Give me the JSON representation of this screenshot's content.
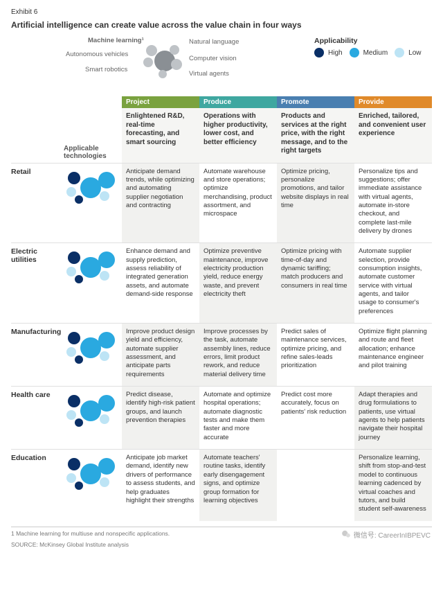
{
  "exhibit_label": "Exhibit 6",
  "title": "Artificial intelligence can create value across the value chain in four ways",
  "tech_legend": {
    "heading": "Machine learning¹",
    "items": [
      "Natural language",
      "Autonomous vehicles",
      "Computer vision",
      "Smart robotics",
      "Virtual agents"
    ],
    "center_color": "#8a8f94",
    "ring_color": "#bfc3c7"
  },
  "applicability": {
    "heading": "Applicability",
    "levels": [
      {
        "label": "High",
        "color": "#0a2f66"
      },
      {
        "label": "Medium",
        "color": "#2aa9e0"
      },
      {
        "label": "Low",
        "color": "#bde4f5"
      }
    ]
  },
  "columns": [
    {
      "key": "project",
      "tab": "Project",
      "color": "#7aa23f",
      "sub": "Enlightened R&D, real-time forecasting, and smart sourcing"
    },
    {
      "key": "produce",
      "tab": "Produce",
      "color": "#3fa7a0",
      "sub": "Operations with higher productivity, lower cost, and better efficiency"
    },
    {
      "key": "promote",
      "tab": "Promote",
      "color": "#4a7fb0",
      "sub": "Products and services at the right price, with the right message, and to the right targets"
    },
    {
      "key": "provide",
      "tab": "Provide",
      "color": "#e08a2a",
      "sub": "Enriched, tailored, and convenient user experience"
    }
  ],
  "app_tech_label": "Applicable technologies",
  "rows": [
    {
      "label": "Retail",
      "cells": {
        "project": "Anticipate demand trends, while optimizing and automating supplier negotiation and contracting",
        "produce": "Automate warehouse and store operations; optimize merchandising, product assortment, and microspace",
        "promote": "Optimize pricing, personalize promotions, and tailor website displays in real time",
        "provide": "Personalize tips and suggestions; offer immediate assistance with virtual agents, automate in-store checkout, and complete last-mile delivery by drones"
      },
      "shade": {
        "project": true,
        "produce": false,
        "promote": true,
        "provide": false
      }
    },
    {
      "label": "Electric utilities",
      "cells": {
        "project": "Enhance demand and supply prediction, assess reliability of integrated generation assets, and automate demand-side response",
        "produce": "Optimize preventive maintenance, improve electricity production yield, reduce energy waste, and prevent electricity theft",
        "promote": "Optimize pricing with time-of-day and dynamic tariffing; match producers and consumers in real time",
        "provide": "Automate supplier selection, provide consumption insights, automate customer service with virtual agents, and tailor usage to consumer's preferences"
      },
      "shade": {
        "project": false,
        "produce": true,
        "promote": true,
        "provide": false
      }
    },
    {
      "label": "Manufacturing",
      "cells": {
        "project": "Improve product design yield and efficiency, automate supplier assessment, and anticipate parts requirements",
        "produce": "Improve processes by the task, automate assembly lines, reduce errors, limit product rework, and reduce material delivery time",
        "promote": "Predict sales of maintenance services, optimize pricing, and refine sales-leads prioritization",
        "provide": "Optimize flight planning and route and fleet allocation; enhance maintenance engineer and pilot training"
      },
      "shade": {
        "project": true,
        "produce": true,
        "promote": false,
        "provide": false
      }
    },
    {
      "label": "Health care",
      "cells": {
        "project": "Predict disease, identify high-risk patient groups, and launch prevention therapies",
        "produce": "Automate and optimize hospital operations; automate diagnostic tests and make them faster and more accurate",
        "promote": "Predict cost more accurately, focus on patients' risk reduction",
        "provide": "Adapt therapies and drug formulations to patients, use virtual agents to help patients navigate their hospital journey"
      },
      "shade": {
        "project": true,
        "produce": false,
        "promote": false,
        "provide": true
      }
    },
    {
      "label": "Education",
      "cells": {
        "project": "Anticipate job market demand, identify new drivers of performance to assess students, and help graduates highlight their strengths",
        "produce": "Automate teachers' routine tasks, identify early disengagement signs, and optimize group formation for learning objectives",
        "promote": "",
        "provide": "Personalize learning, shift from stop-and-test model to continuous learning cadenced by virtual coaches and tutors, and build student self-awareness"
      },
      "shade": {
        "project": false,
        "produce": true,
        "promote": false,
        "provide": true
      }
    }
  ],
  "cluster_palette": {
    "dark": "#0a2f66",
    "med": "#2aa9e0",
    "light": "#bde4f5",
    "grey": "#8a8f94"
  },
  "footnote": "1  Machine learning for multiuse and nonspecific applications.",
  "source": "SOURCE:  McKinsey Global Institute analysis",
  "watermark": "微信号: CareerInIBPEVC"
}
